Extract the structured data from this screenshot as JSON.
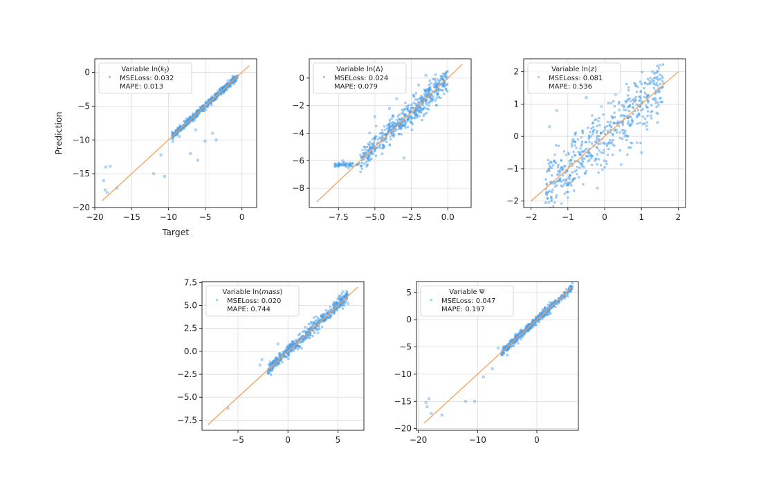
{
  "figure": {
    "xlabel_first": "Target",
    "ylabel_first": "Prediction"
  },
  "chart_data": [
    {
      "type": "scatter",
      "legend": {
        "placement": "top-left",
        "title": "Variable ln(k_t)",
        "title_plain": "Variable ln(",
        "title_italic": "k",
        "title_sub": "t",
        "title_end": ")",
        "line1": "MSELoss: 0.032",
        "line2": "MAPE: 0.013"
      },
      "xlim": [
        -20,
        2
      ],
      "ylim": [
        -20,
        2
      ],
      "xticks": [
        -20,
        -15,
        -10,
        -5,
        0
      ],
      "yticks": [
        -20,
        -15,
        -10,
        -5,
        0
      ],
      "xtick_labels": [
        "−20",
        "−15",
        "−10",
        "−5",
        "0"
      ],
      "ytick_labels": [
        "−20",
        "−15",
        "−10",
        "−5",
        "0"
      ],
      "xlabel": "Target",
      "ylabel": "Prediction",
      "reference_line": {
        "from": [
          -19,
          -19
        ],
        "to": [
          1,
          1
        ],
        "color": "#f5a05a"
      },
      "point_color": "#4a9fea",
      "band": {
        "x_range": [
          -9.5,
          -0.6
        ],
        "spread": 0.25
      },
      "outliers": [
        [
          -18.6,
          -17.4
        ],
        [
          -18.3,
          -17.8
        ],
        [
          -18.5,
          -14.0
        ],
        [
          -18.8,
          -16.0
        ],
        [
          -17.9,
          -13.9
        ],
        [
          -17.0,
          -17.1
        ],
        [
          -11.0,
          -12.2
        ],
        [
          -10.5,
          -15.4
        ],
        [
          -12.0,
          -15.0
        ],
        [
          -8.5,
          -9.5
        ],
        [
          -6.0,
          -13.0
        ],
        [
          -5.0,
          -10.2
        ],
        [
          -6.3,
          -8.5
        ],
        [
          -4.0,
          -9.0
        ],
        [
          -3.5,
          -10.0
        ],
        [
          -7.0,
          -12.0
        ]
      ]
    },
    {
      "type": "scatter",
      "legend": {
        "placement": "top-left",
        "title": "Variable ln(Δ)",
        "title_plain": "Variable ln(Δ)",
        "line1": "MSELoss: 0.024",
        "line2": "MAPE: 0.079"
      },
      "xlim": [
        -9.5,
        1.6
      ],
      "ylim": [
        -9.4,
        1.4
      ],
      "xticks": [
        -7.5,
        -5.0,
        -2.5,
        0.0
      ],
      "yticks": [
        -8,
        -6,
        -4,
        -2,
        0
      ],
      "xtick_labels": [
        "−7.5",
        "−5.0",
        "−2.5",
        "0.0"
      ],
      "ytick_labels": [
        "−8",
        "−6",
        "−4",
        "−2",
        "0"
      ],
      "xlabel": "",
      "ylabel": "",
      "reference_line": {
        "from": [
          -9.0,
          -9.0
        ],
        "to": [
          1.0,
          1.0
        ],
        "color": "#f5a05a"
      },
      "point_color": "#4a9fea",
      "band": {
        "x_range": [
          -6.0,
          0.0
        ],
        "spread": 0.45
      },
      "tail": {
        "x_range": [
          -7.8,
          -6.0
        ],
        "y_level": -6.3,
        "spread": 0.08
      },
      "outliers": [
        [
          -6.8,
          -6.5
        ],
        [
          -7.2,
          -6.0
        ],
        [
          -4.0,
          -2.2
        ],
        [
          -3.5,
          -1.5
        ],
        [
          -5.0,
          -2.8
        ],
        [
          -2.0,
          -0.5
        ],
        [
          -1.5,
          0.2
        ],
        [
          -4.5,
          -5.5
        ],
        [
          -3.0,
          -5.8
        ]
      ]
    },
    {
      "type": "scatter",
      "legend": {
        "placement": "top-left",
        "title": "Variable ln(z)",
        "title_plain": "Variable ln(",
        "title_italic": "z",
        "title_end": ")",
        "line1": "MSELoss: 0.081",
        "line2": "MAPE: 0.536"
      },
      "xlim": [
        -2.2,
        2.2
      ],
      "ylim": [
        -2.2,
        2.4
      ],
      "xticks": [
        -2,
        -1,
        0,
        1,
        2
      ],
      "yticks": [
        -2,
        -1,
        0,
        1,
        2
      ],
      "xtick_labels": [
        "−2",
        "−1",
        "0",
        "1",
        "2"
      ],
      "ytick_labels": [
        "−2",
        "−1",
        "0",
        "1",
        "2"
      ],
      "xlabel": "",
      "ylabel": "",
      "reference_line": {
        "from": [
          -2.0,
          -2.0
        ],
        "to": [
          2.0,
          2.0
        ],
        "color": "#f5a05a"
      },
      "point_color": "#4a9fea",
      "band": {
        "x_range": [
          -1.6,
          1.6
        ],
        "spread": 0.45
      },
      "outliers": [
        [
          -1.5,
          0.3
        ],
        [
          -1.3,
          0.8
        ],
        [
          -0.5,
          1.2
        ],
        [
          0.3,
          1.3
        ],
        [
          1.5,
          2.2
        ],
        [
          1.3,
          2.0
        ],
        [
          -0.2,
          -1.6
        ],
        [
          1.0,
          -0.5
        ],
        [
          -1.6,
          -2.05
        ]
      ]
    },
    {
      "type": "scatter",
      "legend": {
        "placement": "top-left",
        "title": "Variable ln(mass)",
        "title_plain": "Variable ln(",
        "title_italic": "mass",
        "title_end": ")",
        "line1": "MSELoss: 0.020",
        "line2": "MAPE: 0.744"
      },
      "xlim": [
        -8.6,
        7.6
      ],
      "ylim": [
        -8.6,
        7.6
      ],
      "xticks": [
        -5,
        0,
        5
      ],
      "yticks": [
        -7.5,
        -5.0,
        -2.5,
        0.0,
        2.5,
        5.0,
        7.5
      ],
      "xtick_labels": [
        "−5",
        "0",
        "5"
      ],
      "ytick_labels": [
        "−7.5",
        "−5.0",
        "−2.5",
        "0.0",
        "2.5",
        "5.0",
        "7.5"
      ],
      "xlabel": "",
      "ylabel": "",
      "reference_line": {
        "from": [
          -8.0,
          -8.0
        ],
        "to": [
          7.0,
          7.0
        ],
        "color": "#f5a05a"
      },
      "point_color": "#4a9fea",
      "band": {
        "x_range": [
          -2.0,
          6.0
        ],
        "spread": 0.35
      },
      "outliers": [
        [
          -2.6,
          -0.9
        ],
        [
          -2.8,
          -1.5
        ],
        [
          -6.0,
          -6.2
        ],
        [
          5.5,
          6.5
        ],
        [
          6.0,
          5.2
        ],
        [
          -1.0,
          0.8
        ],
        [
          -2.0,
          -2.3
        ],
        [
          3.0,
          2.0
        ]
      ]
    },
    {
      "type": "scatter",
      "legend": {
        "placement": "top-left",
        "title": "Variable Ψ",
        "title_plain": "Variable Ψ",
        "line1": "MSELoss: 0.047",
        "line2": "MAPE: 0.197"
      },
      "xlim": [
        -20.3,
        7.0
      ],
      "ylim": [
        -20.3,
        7.0
      ],
      "xticks": [
        -20,
        -10,
        0
      ],
      "yticks": [
        -20,
        -15,
        -10,
        -5,
        0,
        5
      ],
      "xtick_labels": [
        "−20",
        "−10",
        "0"
      ],
      "ytick_labels": [
        "−20",
        "−15",
        "−10",
        "−5",
        "0",
        "5"
      ],
      "xlabel": "",
      "ylabel": "",
      "reference_line": {
        "from": [
          -19.0,
          -19.0
        ],
        "to": [
          6.0,
          6.0
        ],
        "color": "#f5a05a"
      },
      "point_color": "#4a9fea",
      "band": {
        "x_range": [
          -6.0,
          6.0
        ],
        "spread": 0.35
      },
      "outliers": [
        [
          -18.7,
          -15.2
        ],
        [
          -18.5,
          -16.0
        ],
        [
          -17.8,
          -17.2
        ],
        [
          -12.0,
          -15.0
        ],
        [
          -10.5,
          -15.0
        ],
        [
          -7.5,
          -9.0
        ],
        [
          -9.0,
          -10.5
        ],
        [
          -5.0,
          -6.5
        ],
        [
          -6.5,
          -5.2
        ],
        [
          -16.0,
          -17.5
        ],
        [
          -18.2,
          -14.5
        ]
      ]
    }
  ]
}
